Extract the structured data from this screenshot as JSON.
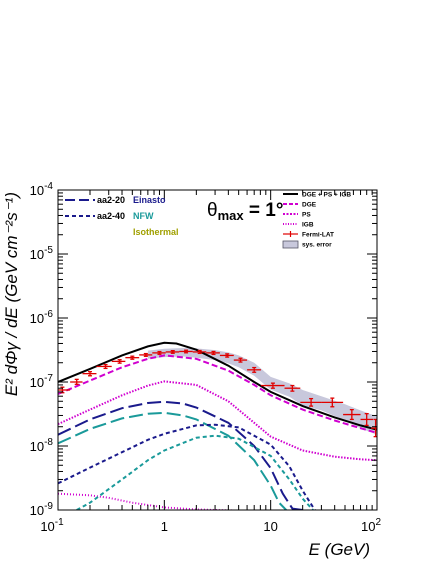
{
  "chart_data": {
    "type": "line",
    "x_scale": "log",
    "y_scale": "log",
    "xlim": [
      0.1,
      100
    ],
    "ylim": [
      1e-09,
      0.0001
    ],
    "xlabel": "E (GeV)",
    "ylabel": "E² dΦγ / dE (GeV cm⁻²s⁻¹)",
    "annotation": "θmax = 1°",
    "x_tick_labels": [
      {
        "value": 0.1,
        "base": "10",
        "exp": "-1"
      },
      {
        "value": 1,
        "base": "1",
        "exp": ""
      },
      {
        "value": 10,
        "base": "10",
        "exp": ""
      },
      {
        "value": 100,
        "base": "10",
        "exp": "2"
      }
    ],
    "y_tick_labels": [
      {
        "value": 0.0001,
        "base": "10",
        "exp": "-4"
      },
      {
        "value": 1e-05,
        "base": "10",
        "exp": "-5"
      },
      {
        "value": 1e-06,
        "base": "10",
        "exp": "-6"
      },
      {
        "value": 1e-07,
        "base": "10",
        "exp": "-7"
      },
      {
        "value": 1e-08,
        "base": "10",
        "exp": "-8"
      },
      {
        "value": 1e-09,
        "base": "10",
        "exp": "-9"
      }
    ],
    "legend_left": {
      "placement": "top-left",
      "line_styles": [
        {
          "label": "aa2-20",
          "dash": "long"
        },
        {
          "label": "aa2-40",
          "dash": "short"
        }
      ],
      "profiles": [
        {
          "label": "Einasto",
          "color": "#1a1a8c"
        },
        {
          "label": "NFW",
          "color": "#1a9a9a"
        },
        {
          "label": "Isothermal",
          "color": "#a0a000"
        }
      ]
    },
    "legend_right": {
      "placement": "top-right",
      "entries": [
        {
          "label": "DGE + PS + IGB",
          "color": "#000000",
          "style": "solid"
        },
        {
          "label": "DGE",
          "color": "#d000d0",
          "style": "dashed"
        },
        {
          "label": "PS",
          "color": "#d000d0",
          "style": "dense-dash"
        },
        {
          "label": "IGB",
          "color": "#d000d0",
          "style": "dotted"
        },
        {
          "label": "Fermi-LAT",
          "color": "#e00000",
          "style": "errorbar"
        },
        {
          "label": "sys. error",
          "color": "#c8c8dc",
          "style": "box"
        }
      ]
    },
    "series": [
      {
        "name": "DGE + PS + IGB",
        "color": "#000000",
        "dash": "",
        "x": [
          0.1,
          0.2,
          0.4,
          0.7,
          1.0,
          1.3,
          2,
          4,
          7,
          10,
          20,
          40,
          70,
          100
        ],
        "y": [
          1e-07,
          1.6e-07,
          2.6e-07,
          3.6e-07,
          4.1e-07,
          4e-07,
          3.2e-07,
          1.8e-07,
          1e-07,
          7e-08,
          4.2e-08,
          2.8e-08,
          2.1e-08,
          1.8e-08
        ]
      },
      {
        "name": "DGE",
        "color": "#d000d0",
        "dash": "6,3",
        "x": [
          0.1,
          0.2,
          0.4,
          0.7,
          1.0,
          2,
          4,
          7,
          10,
          20,
          40,
          70,
          100
        ],
        "y": [
          6.5e-08,
          1.05e-07,
          1.7e-07,
          2.3e-07,
          2.6e-07,
          2.3e-07,
          1.5e-07,
          9e-08,
          6.2e-08,
          3.7e-08,
          2.5e-08,
          1.9e-08,
          1.6e-08
        ]
      },
      {
        "name": "PS",
        "color": "#d000d0",
        "dash": "1.5,1.5",
        "x": [
          0.1,
          0.2,
          0.4,
          0.7,
          1.0,
          2,
          4,
          7,
          10,
          20,
          40,
          70,
          100
        ],
        "y": [
          2.2e-08,
          3.7e-08,
          6.2e-08,
          8.8e-08,
          1.02e-07,
          9e-08,
          5e-08,
          2.3e-08,
          1.4e-08,
          8.5e-09,
          6.8e-09,
          6.2e-09,
          6e-09
        ]
      },
      {
        "name": "IGB",
        "color": "#d000d0",
        "dash": "1,2",
        "x": [
          0.1,
          0.2,
          0.3,
          0.5,
          1.0,
          2,
          3,
          5,
          10,
          100
        ],
        "y": [
          1.8e-09,
          1.7e-09,
          1.55e-09,
          1.3e-09,
          1.1e-09,
          1.02e-09,
          1e-09,
          9.8e-10,
          9.7e-10,
          9.5e-10
        ]
      },
      {
        "name": "aa2-20 Einasto",
        "color": "#1a1a8c",
        "dash": "14,5",
        "x": [
          0.1,
          0.2,
          0.4,
          0.7,
          1.0,
          1.5,
          2,
          4,
          7,
          10,
          13,
          16,
          20
        ],
        "y": [
          1.5e-08,
          2.6e-08,
          3.9e-08,
          4.7e-08,
          4.9e-08,
          4.6e-08,
          4e-08,
          2.3e-08,
          1e-08,
          4.5e-09,
          1.8e-09,
          1.05e-09,
          1e-09
        ]
      },
      {
        "name": "aa2-20 NFW",
        "color": "#1a9a9a",
        "dash": "14,5",
        "x": [
          0.1,
          0.2,
          0.4,
          0.7,
          1.0,
          1.5,
          2,
          4,
          7,
          10,
          12,
          14
        ],
        "y": [
          1.1e-08,
          1.85e-08,
          2.7e-08,
          3.2e-08,
          3.3e-08,
          3e-08,
          2.6e-08,
          1.45e-08,
          6e-09,
          2.4e-09,
          1.3e-09,
          1e-09
        ]
      },
      {
        "name": "aa2-40 Einasto",
        "color": "#1a1a8c",
        "dash": "4,3",
        "x": [
          0.1,
          0.2,
          0.4,
          0.7,
          1.0,
          2,
          3,
          5,
          10,
          15,
          20,
          26
        ],
        "y": [
          2.6e-09,
          4.6e-09,
          8e-09,
          1.25e-08,
          1.55e-08,
          2.1e-08,
          2.15e-08,
          1.95e-08,
          1.05e-08,
          4.8e-09,
          2e-09,
          1e-09
        ]
      },
      {
        "name": "aa2-40 NFW",
        "color": "#1a9a9a",
        "dash": "4,3",
        "x": [
          0.15,
          0.2,
          0.4,
          0.7,
          1.0,
          2,
          3,
          5,
          10,
          15,
          20,
          25
        ],
        "y": [
          1e-09,
          1.3e-09,
          3e-09,
          6e-09,
          8.5e-09,
          1.35e-08,
          1.45e-08,
          1.3e-08,
          7e-09,
          3e-09,
          1.5e-09,
          1e-09
        ]
      }
    ],
    "fermi_lat": {
      "name": "Fermi-LAT",
      "color": "#e00000",
      "points": [
        {
          "x": 0.11,
          "y": 7.5e-08,
          "xlo": 0.1,
          "xhi": 0.13,
          "ylo": 6.8e-08,
          "yhi": 8.3e-08
        },
        {
          "x": 0.15,
          "y": 1e-07,
          "xlo": 0.13,
          "xhi": 0.17,
          "ylo": 9.2e-08,
          "yhi": 1.1e-07
        },
        {
          "x": 0.2,
          "y": 1.35e-07,
          "xlo": 0.17,
          "xhi": 0.23,
          "ylo": 1.25e-07,
          "yhi": 1.45e-07
        },
        {
          "x": 0.28,
          "y": 1.75e-07,
          "xlo": 0.23,
          "xhi": 0.32,
          "ylo": 1.63e-07,
          "yhi": 1.87e-07
        },
        {
          "x": 0.38,
          "y": 2.1e-07,
          "xlo": 0.32,
          "xhi": 0.43,
          "ylo": 1.97e-07,
          "yhi": 2.23e-07
        },
        {
          "x": 0.5,
          "y": 2.4e-07,
          "xlo": 0.43,
          "xhi": 0.58,
          "ylo": 2.27e-07,
          "yhi": 2.53e-07
        },
        {
          "x": 0.67,
          "y": 2.65e-07,
          "xlo": 0.58,
          "xhi": 0.77,
          "ylo": 2.52e-07,
          "yhi": 2.78e-07
        },
        {
          "x": 0.9,
          "y": 2.85e-07,
          "xlo": 0.77,
          "xhi": 1.03,
          "ylo": 2.71e-07,
          "yhi": 2.99e-07
        },
        {
          "x": 1.2,
          "y": 2.95e-07,
          "xlo": 1.03,
          "xhi": 1.38,
          "ylo": 2.81e-07,
          "yhi": 3.09e-07
        },
        {
          "x": 1.6,
          "y": 3e-07,
          "xlo": 1.38,
          "xhi": 1.85,
          "ylo": 2.86e-07,
          "yhi": 3.14e-07
        },
        {
          "x": 2.15,
          "y": 2.95e-07,
          "xlo": 1.85,
          "xhi": 2.48,
          "ylo": 2.8e-07,
          "yhi": 3.1e-07
        },
        {
          "x": 2.9,
          "y": 2.85e-07,
          "xlo": 2.48,
          "xhi": 3.33,
          "ylo": 2.7e-07,
          "yhi": 3e-07
        },
        {
          "x": 3.9,
          "y": 2.6e-07,
          "xlo": 3.33,
          "xhi": 4.5,
          "ylo": 2.45e-07,
          "yhi": 2.75e-07
        },
        {
          "x": 5.2,
          "y": 2.2e-07,
          "xlo": 4.5,
          "xhi": 6.0,
          "ylo": 2.05e-07,
          "yhi": 2.35e-07
        },
        {
          "x": 7.0,
          "y": 1.55e-07,
          "xlo": 6.0,
          "xhi": 8.1,
          "ylo": 1.42e-07,
          "yhi": 1.68e-07
        },
        {
          "x": 10.5,
          "y": 8.8e-08,
          "xlo": 8.1,
          "xhi": 13.5,
          "ylo": 8e-08,
          "yhi": 9.6e-08
        },
        {
          "x": 16,
          "y": 8e-08,
          "xlo": 13.5,
          "xhi": 19,
          "ylo": 7.2e-08,
          "yhi": 8.8e-08
        },
        {
          "x": 24,
          "y": 4.8e-08,
          "xlo": 19,
          "xhi": 30,
          "ylo": 4.2e-08,
          "yhi": 5.5e-08
        },
        {
          "x": 38,
          "y": 4.8e-08,
          "xlo": 30,
          "xhi": 48,
          "ylo": 4.1e-08,
          "yhi": 5.6e-08
        },
        {
          "x": 58,
          "y": 3.1e-08,
          "xlo": 48,
          "xhi": 70,
          "ylo": 2.6e-08,
          "yhi": 3.7e-08
        },
        {
          "x": 80,
          "y": 2.6e-08,
          "xlo": 70,
          "xhi": 92,
          "ylo": 2.1e-08,
          "yhi": 3.2e-08
        },
        {
          "x": 97,
          "y": 1.9e-08,
          "xlo": 88,
          "xhi": 112,
          "ylo": 1.4e-08,
          "yhi": 2.6e-08
        }
      ]
    },
    "sys_error_band": {
      "name": "sys. error",
      "color": "#c8c8dc",
      "x": [
        0.7,
        1.0,
        1.5,
        2,
        3,
        4,
        5,
        7,
        10,
        15,
        20,
        30,
        50,
        70,
        100
      ],
      "lower": [
        2.3e-07,
        2.45e-07,
        2.5e-07,
        2.4e-07,
        2.2e-07,
        1.95e-07,
        1.7e-07,
        1.25e-07,
        7.6e-08,
        5.9e-08,
        4.3e-08,
        3.6e-08,
        2.5e-08,
        1.9e-08,
        1.5e-08
      ],
      "upper": [
        3.1e-07,
        3.3e-07,
        3.4e-07,
        3.35e-07,
        3.15e-07,
        2.9e-07,
        2.6e-07,
        2e-07,
        1.2e-07,
        9.5e-08,
        7.5e-08,
        6e-08,
        4.5e-08,
        3.6e-08,
        2.9e-08
      ]
    }
  }
}
